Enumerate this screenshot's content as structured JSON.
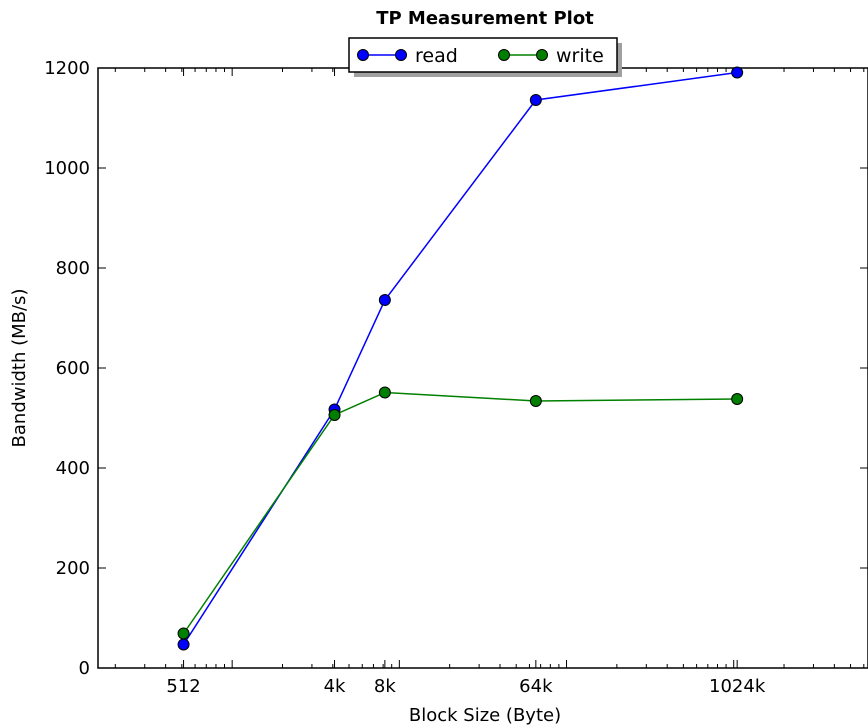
{
  "chart_data": {
    "type": "line",
    "title": "TP Measurement Plot",
    "xlabel": "Block Size (Byte)",
    "ylabel": "Bandwidth (MB/s)",
    "x_scale": "log2",
    "x": [
      512,
      4096,
      8192,
      65536,
      1048576
    ],
    "x_tick_labels": [
      "512",
      "4k",
      "8k",
      "64k",
      "1024k"
    ],
    "y_ticks": [
      0,
      200,
      400,
      600,
      800,
      1000,
      1200
    ],
    "ylim": [
      0,
      1200
    ],
    "grid": false,
    "legend_position": "top-center",
    "series": [
      {
        "name": "read",
        "color": "#0000ff",
        "marker_color": "#0000ff",
        "values": [
          47,
          517,
          736,
          1136,
          1191
        ]
      },
      {
        "name": "write",
        "color": "#008000",
        "marker_color": "#007f00",
        "values": [
          69,
          506,
          551,
          534,
          538
        ]
      }
    ]
  }
}
